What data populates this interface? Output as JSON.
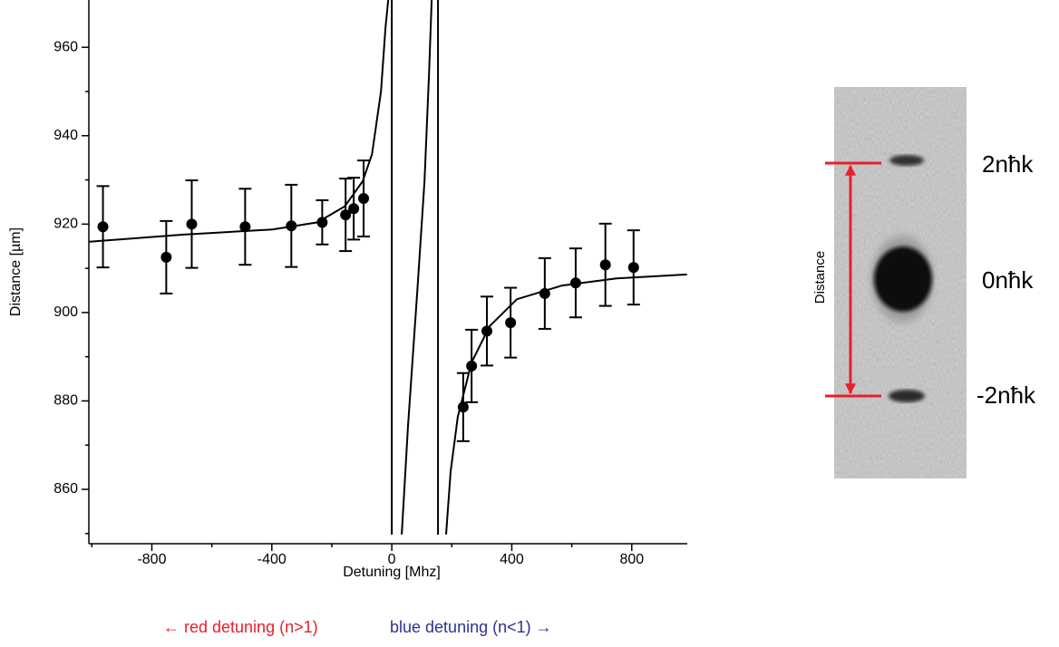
{
  "chart_data": {
    "type": "scatter",
    "x_label": "Detuning [Mhz]",
    "y_label": "Distance [µm]",
    "xlim": [
      -1010,
      985
    ],
    "ylim": [
      847.7,
      970.7
    ],
    "xticks": [
      -800,
      -400,
      0,
      400,
      800
    ],
    "yticks": [
      860,
      880,
      900,
      920,
      940,
      960
    ],
    "x_minor_ticks": [
      -1000,
      -600,
      -200,
      200,
      600
    ],
    "y_minor_ticks": [
      850,
      870,
      890,
      910,
      930,
      950
    ],
    "color": "#000000",
    "x": [
      -963,
      -752,
      -667,
      -489,
      -335,
      -232,
      -154,
      -127,
      -94,
      238,
      266,
      317,
      396,
      510,
      613,
      712,
      806
    ],
    "values": [
      919.4,
      912.5,
      920.0,
      919.4,
      919.6,
      920.4,
      922.1,
      923.5,
      925.8,
      878.6,
      887.9,
      895.8,
      897.7,
      904.3,
      906.7,
      910.8,
      910.2
    ],
    "errors": [
      9.2,
      8.2,
      9.9,
      8.6,
      9.3,
      5.0,
      8.2,
      7.0,
      8.6,
      7.7,
      8.2,
      7.8,
      7.9,
      8.0,
      7.8,
      9.3,
      8.4
    ],
    "fit_curve": {
      "x": [
        -1008,
        -700,
        -398,
        -248,
        -157,
        -97,
        -66,
        -36,
        -21,
        -12,
        null,
        33,
        54,
        85,
        109,
        124,
        133,
        null,
        181,
        196,
        220,
        266,
        326,
        417,
        568,
        749,
        984
      ],
      "values": [
        916.0,
        917.6,
        918.8,
        920.4,
        924.0,
        929.7,
        935.8,
        950.0,
        964.5,
        970.7,
        null,
        849.8,
        874.3,
        905.0,
        929.7,
        954.0,
        970.7,
        null,
        849.8,
        864.0,
        876.4,
        888.7,
        896.9,
        903.0,
        906.1,
        907.7,
        908.6
      ]
    },
    "asymptotes": [
      0,
      154
    ],
    "annotations": [
      "← red detuning (n>1)",
      "blue detuning (n<1) →"
    ],
    "annotation_colors": [
      "#e8202a",
      "#2e3192"
    ]
  },
  "image_panel": {
    "axis_label": "Distance",
    "labels": [
      "2nħk",
      "0nħk",
      "-2nħk"
    ],
    "marker_color": "#e8202a"
  }
}
